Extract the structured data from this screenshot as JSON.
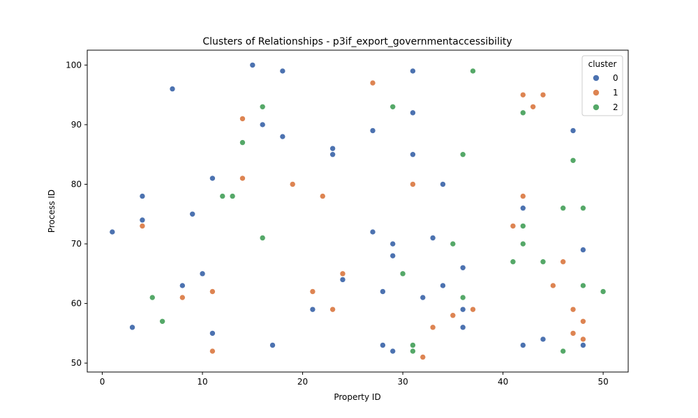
{
  "chart_data": {
    "type": "scatter",
    "title": "Clusters of Relationships - p3if_export_governmentaccessibility",
    "xlabel": "Property ID",
    "ylabel": "Process ID",
    "xlim": [
      -1.5,
      52.5
    ],
    "ylim": [
      48.5,
      102.5
    ],
    "xticks": [
      0,
      10,
      20,
      30,
      40,
      50
    ],
    "yticks": [
      50,
      60,
      70,
      80,
      90,
      100
    ],
    "grid": false,
    "legend": {
      "title": "cluster",
      "placement": "top-right"
    },
    "colors": {
      "0": "#4c72b0",
      "1": "#dd8452",
      "2": "#55a868"
    },
    "series": [
      {
        "name": "0",
        "points": [
          [
            15,
            100
          ],
          [
            18,
            99
          ],
          [
            31,
            99
          ],
          [
            7,
            96
          ],
          [
            31,
            92
          ],
          [
            16,
            90
          ],
          [
            27,
            89
          ],
          [
            47,
            89
          ],
          [
            18,
            88
          ],
          [
            23,
            86
          ],
          [
            23,
            85
          ],
          [
            31,
            85
          ],
          [
            11,
            81
          ],
          [
            34,
            80
          ],
          [
            4,
            78
          ],
          [
            42,
            76
          ],
          [
            9,
            75
          ],
          [
            4,
            74
          ],
          [
            1,
            72
          ],
          [
            27,
            72
          ],
          [
            33,
            71
          ],
          [
            29,
            70
          ],
          [
            48,
            69
          ],
          [
            29,
            68
          ],
          [
            36,
            66
          ],
          [
            10,
            65
          ],
          [
            24,
            64
          ],
          [
            8,
            63
          ],
          [
            34,
            63
          ],
          [
            28,
            62
          ],
          [
            32,
            61
          ],
          [
            21,
            59
          ],
          [
            36,
            59
          ],
          [
            3,
            56
          ],
          [
            36,
            56
          ],
          [
            11,
            55
          ],
          [
            44,
            54
          ],
          [
            17,
            53
          ],
          [
            28,
            53
          ],
          [
            42,
            53
          ],
          [
            48,
            53
          ],
          [
            29,
            52
          ]
        ]
      },
      {
        "name": "1",
        "points": [
          [
            27,
            97
          ],
          [
            42,
            95
          ],
          [
            44,
            95
          ],
          [
            43,
            93
          ],
          [
            14,
            91
          ],
          [
            14,
            81
          ],
          [
            19,
            80
          ],
          [
            31,
            80
          ],
          [
            22,
            78
          ],
          [
            42,
            78
          ],
          [
            4,
            73
          ],
          [
            41,
            73
          ],
          [
            46,
            67
          ],
          [
            24,
            65
          ],
          [
            45,
            63
          ],
          [
            11,
            62
          ],
          [
            21,
            62
          ],
          [
            8,
            61
          ],
          [
            23,
            59
          ],
          [
            37,
            59
          ],
          [
            47,
            59
          ],
          [
            35,
            58
          ],
          [
            48,
            57
          ],
          [
            33,
            56
          ],
          [
            47,
            55
          ],
          [
            48,
            54
          ],
          [
            11,
            52
          ],
          [
            32,
            51
          ]
        ]
      },
      {
        "name": "2",
        "points": [
          [
            37,
            99
          ],
          [
            16,
            93
          ],
          [
            29,
            93
          ],
          [
            42,
            92
          ],
          [
            14,
            87
          ],
          [
            36,
            85
          ],
          [
            47,
            84
          ],
          [
            12,
            78
          ],
          [
            13,
            78
          ],
          [
            46,
            76
          ],
          [
            48,
            76
          ],
          [
            42,
            73
          ],
          [
            16,
            71
          ],
          [
            35,
            70
          ],
          [
            42,
            70
          ],
          [
            41,
            67
          ],
          [
            44,
            67
          ],
          [
            30,
            65
          ],
          [
            48,
            63
          ],
          [
            50,
            62
          ],
          [
            5,
            61
          ],
          [
            36,
            61
          ],
          [
            6,
            57
          ],
          [
            31,
            53
          ],
          [
            31,
            52
          ],
          [
            46,
            52
          ]
        ]
      }
    ]
  }
}
